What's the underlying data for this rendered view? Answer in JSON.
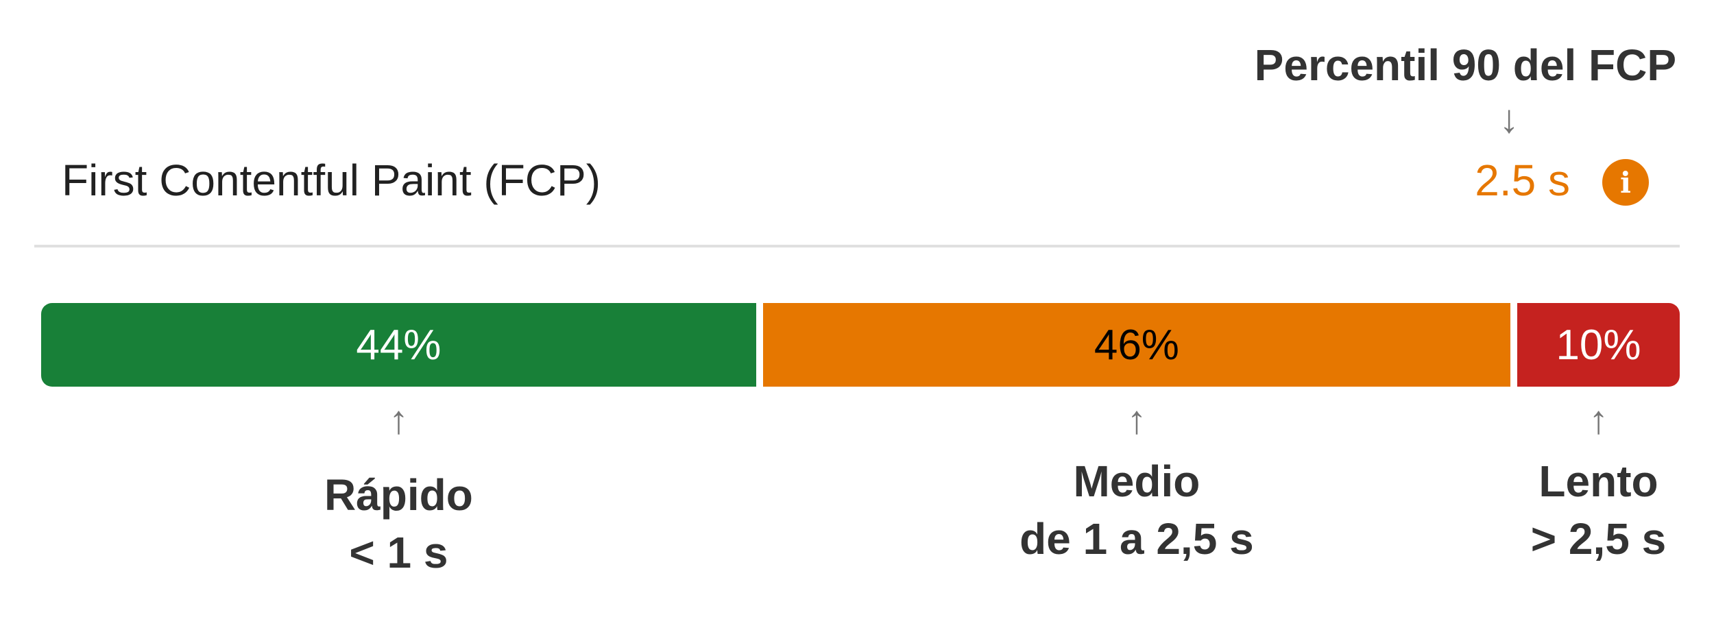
{
  "percentile_heading": "Percentil 90 del FCP",
  "metric": {
    "title": "First Contentful Paint (FCP)",
    "value": "2.5 s",
    "value_color": "#e67700",
    "info_icon": "info-icon",
    "info_glyph": "i"
  },
  "distribution": [
    {
      "key": "fast",
      "percent_label": "44%",
      "share": 0.44,
      "color": "#188038",
      "text_color": "#ffffff",
      "category": "Rápido",
      "range": "< 1 s"
    },
    {
      "key": "average",
      "percent_label": "46%",
      "share": 0.46,
      "color": "#e67700",
      "text_color": "#000000",
      "category": "Medio",
      "range": "de 1 a 2,5 s"
    },
    {
      "key": "slow",
      "percent_label": "10%",
      "share": 0.1,
      "color": "#c5221f",
      "text_color": "#ffffff",
      "category": "Lento",
      "range": "> 2,5 s"
    }
  ],
  "arrows": {
    "down": "↓",
    "up": "↑"
  }
}
